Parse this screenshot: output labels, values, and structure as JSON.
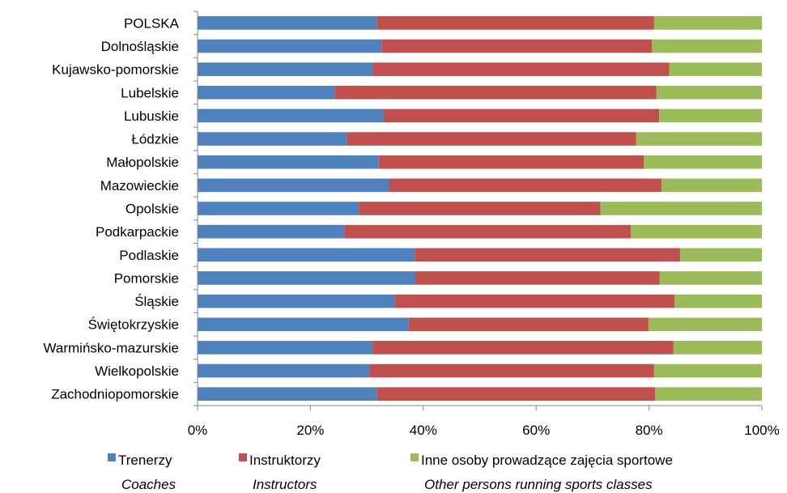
{
  "chart_data": {
    "type": "bar",
    "orientation": "horizontal",
    "stacked": "percent",
    "categories": [
      "POLSKA",
      "Dolnośląskie",
      "Kujawsko-pomorskie",
      "Lubelskie",
      "Lubuskie",
      "Łódzkie",
      "Małopolskie",
      "Mazowieckie",
      "Opolskie",
      "Podkarpackie",
      "Podlaskie",
      "Pomorskie",
      "Śląskie",
      "Świętokrzyskie",
      "Warmińsko-mazurskie",
      "Wielkopolskie",
      "Zachodniopomorskie"
    ],
    "series": [
      {
        "name": "Trenerzy",
        "name_en": "Coaches",
        "color": "#4F81BD",
        "values": [
          31.8,
          32.6,
          31.0,
          24.3,
          33.0,
          26.5,
          32.1,
          34.0,
          28.6,
          26.0,
          38.5,
          38.6,
          35.0,
          37.4,
          31.0,
          30.5,
          31.8
        ]
      },
      {
        "name": "Instruktorzy",
        "name_en": "Instructors",
        "color": "#C0504D",
        "values": [
          49.1,
          47.9,
          52.6,
          57.0,
          48.8,
          51.2,
          47.0,
          48.2,
          42.8,
          50.8,
          47.0,
          43.3,
          49.5,
          42.5,
          53.3,
          50.4,
          49.3
        ]
      },
      {
        "name": "Inne osoby prowadzące zajęcia sportowe",
        "name_en": "Other persons running sports classes",
        "color": "#9BBB59",
        "values": [
          19.1,
          19.5,
          16.4,
          18.7,
          18.2,
          22.3,
          20.9,
          17.8,
          28.6,
          23.2,
          14.5,
          18.1,
          15.5,
          20.1,
          15.7,
          19.1,
          18.9
        ]
      }
    ],
    "xlim": [
      0,
      100
    ],
    "xticks": [
      "0%",
      "20%",
      "40%",
      "60%",
      "80%",
      "100%"
    ],
    "grid": false,
    "legend_position": "bottom"
  }
}
